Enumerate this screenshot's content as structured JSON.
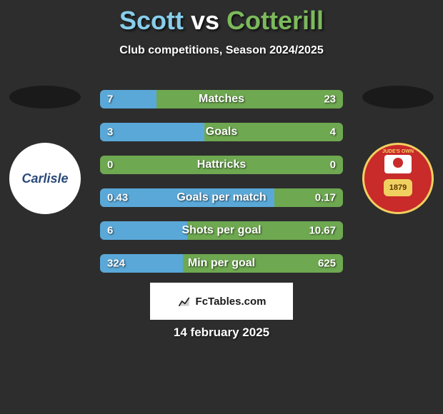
{
  "header": {
    "player1": "Scott",
    "vs": "vs",
    "player2": "Cotterill",
    "subtitle": "Club competitions, Season 2024/2025"
  },
  "colors": {
    "player1_text": "#87ceeb",
    "player2_text": "#7cba5c",
    "bar_left": "#5aa8d8",
    "bar_right": "#6ea850",
    "background": "#2d2d2d"
  },
  "badges": {
    "left_label": "Carlisle",
    "right_top": "JUDE'S OWN",
    "right_year": "1879"
  },
  "stats": [
    {
      "label": "Matches",
      "left_val": "7",
      "right_val": "23",
      "left_pct": 23.3
    },
    {
      "label": "Goals",
      "left_val": "3",
      "right_val": "4",
      "left_pct": 42.9
    },
    {
      "label": "Hattricks",
      "left_val": "0",
      "right_val": "0",
      "left_pct": 0
    },
    {
      "label": "Goals per match",
      "left_val": "0.43",
      "right_val": "0.17",
      "left_pct": 71.7
    },
    {
      "label": "Shots per goal",
      "left_val": "6",
      "right_val": "10.67",
      "left_pct": 36.0
    },
    {
      "label": "Min per goal",
      "left_val": "324",
      "right_val": "625",
      "left_pct": 34.1
    }
  ],
  "brand": {
    "label": "FcTables.com"
  },
  "date": "14 february 2025"
}
